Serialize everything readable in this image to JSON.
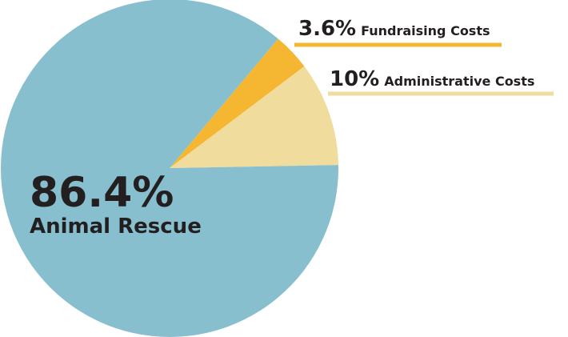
{
  "chart_data": {
    "type": "pie",
    "categories": [
      "Fundraising Costs",
      "Administrative Costs",
      "Animal Rescue"
    ],
    "values": [
      3.6,
      10,
      86.4
    ],
    "value_labels": [
      "3.6%",
      "10%",
      "86.4%"
    ],
    "colors": [
      "#f5b731",
      "#f0dc9c",
      "#88bfcf"
    ]
  }
}
